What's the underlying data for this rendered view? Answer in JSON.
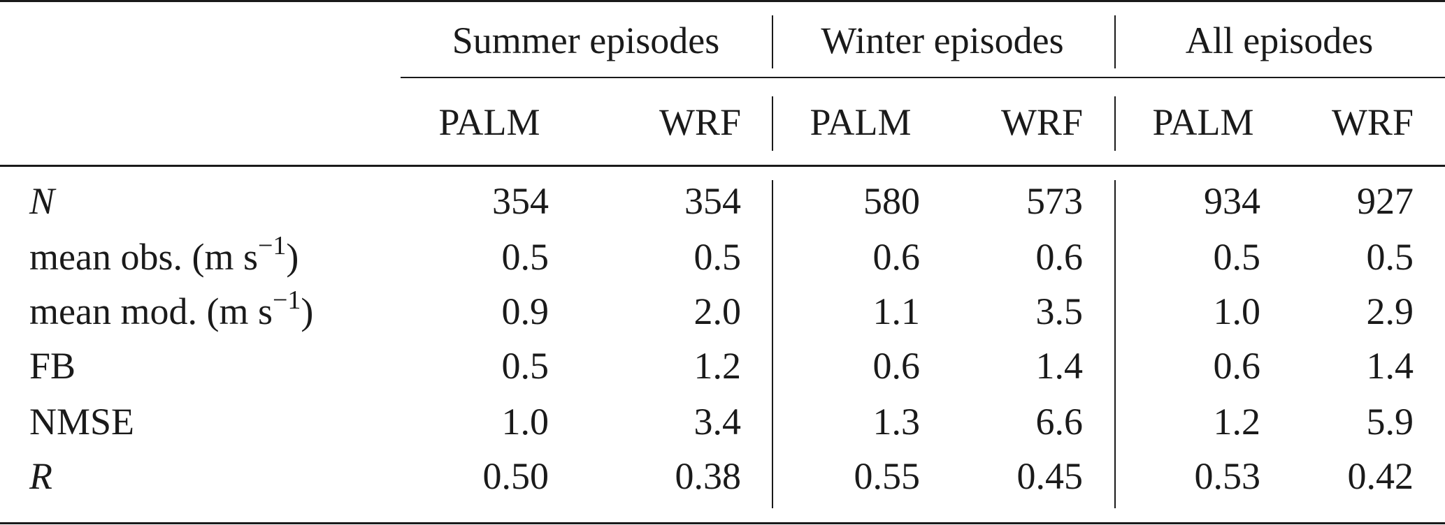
{
  "groups": [
    "Summer episodes",
    "Winter episodes",
    "All episodes"
  ],
  "subheaders": [
    "PALM",
    "WRF",
    "PALM",
    "WRF",
    "PALM",
    "WRF"
  ],
  "rows": [
    {
      "label": "N",
      "unit": "",
      "unit_exp": "",
      "unit_close": "",
      "values": [
        "354",
        "354",
        "580",
        "573",
        "934",
        "927"
      ]
    },
    {
      "label": "mean obs. (",
      "unit": "m s",
      "unit_exp": "−1",
      "unit_close": ")",
      "values": [
        "0.5",
        "0.5",
        "0.6",
        "0.6",
        "0.5",
        "0.5"
      ]
    },
    {
      "label": "mean mod. (",
      "unit": "m s",
      "unit_exp": "−1",
      "unit_close": ")",
      "values": [
        "0.9",
        "2.0",
        "1.1",
        "3.5",
        "1.0",
        "2.9"
      ]
    },
    {
      "label": "FB",
      "unit": "",
      "unit_exp": "",
      "unit_close": "",
      "values": [
        "0.5",
        "1.2",
        "0.6",
        "1.4",
        "0.6",
        "1.4"
      ]
    },
    {
      "label": "NMSE",
      "unit": "",
      "unit_exp": "",
      "unit_close": "",
      "values": [
        "1.0",
        "3.4",
        "1.3",
        "6.6",
        "1.2",
        "5.9"
      ]
    },
    {
      "label": "R",
      "unit": "",
      "unit_exp": "",
      "unit_close": "",
      "values": [
        "0.50",
        "0.38",
        "0.55",
        "0.45",
        "0.53",
        "0.42"
      ]
    }
  ]
}
